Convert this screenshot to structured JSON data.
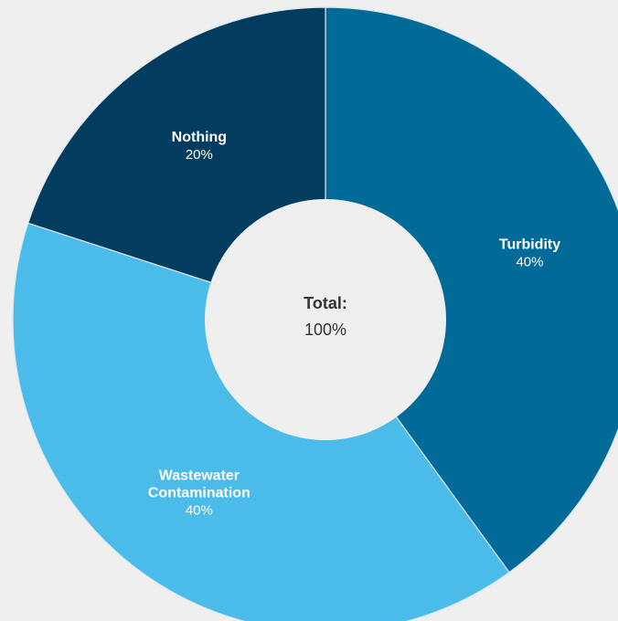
{
  "chart_data": {
    "type": "pie",
    "donut": true,
    "slices": [
      {
        "label_lines": [
          "Turbidity"
        ],
        "value": 40,
        "value_label": "40%",
        "color": "#026a97",
        "text_color": "#ffffff"
      },
      {
        "label_lines": [
          "Wastewater",
          "Contamination"
        ],
        "value": 40,
        "value_label": "40%",
        "color": "#4bbce9",
        "text_color": "#ffffff"
      },
      {
        "label_lines": [
          "Nothing"
        ],
        "value": 20,
        "value_label": "20%",
        "color": "#023c5f",
        "text_color": "#ffffff"
      }
    ],
    "start_angle_deg": 0,
    "direction": "clockwise",
    "center": {
      "title": "Total:",
      "value": "100%"
    },
    "background_color": "#efefef",
    "hole_color": "#efefef",
    "separator_color": "#d9e6ee",
    "center_text_color": "#333333"
  }
}
